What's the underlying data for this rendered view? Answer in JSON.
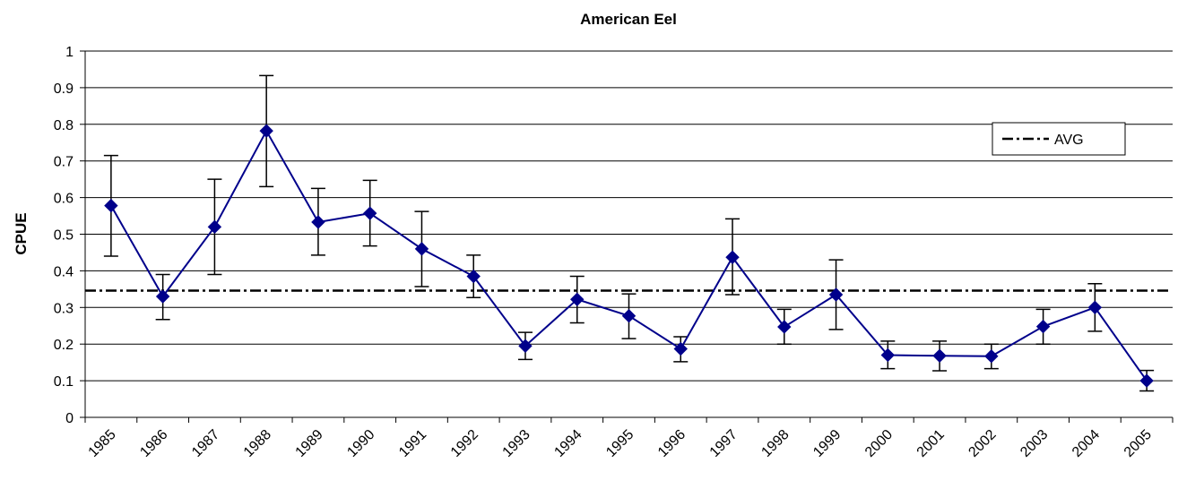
{
  "chart_data": {
    "type": "line",
    "title": "American Eel",
    "xlabel": "",
    "ylabel": "CPUE",
    "ylim": [
      0,
      1
    ],
    "yticks": [
      "0",
      "0.1",
      "0.2",
      "0.3",
      "0.4",
      "0.5",
      "0.6",
      "0.7",
      "0.8",
      "0.9",
      "1"
    ],
    "grid": "horizontal",
    "categories": [
      "1985",
      "1986",
      "1987",
      "1988",
      "1989",
      "1990",
      "1991",
      "1992",
      "1993",
      "1994",
      "1995",
      "1996",
      "1997",
      "1998",
      "1999",
      "2000",
      "2001",
      "2002",
      "2003",
      "2004",
      "2005"
    ],
    "series": [
      {
        "values": [
          0.578,
          0.33,
          0.52,
          0.782,
          0.533,
          0.557,
          0.46,
          0.385,
          0.195,
          0.322,
          0.277,
          0.187,
          0.437,
          0.247,
          0.335,
          0.17,
          0.168,
          0.167,
          0.248,
          0.3,
          0.1
        ],
        "error_low": [
          0.44,
          0.267,
          0.39,
          0.63,
          0.443,
          0.468,
          0.357,
          0.327,
          0.158,
          0.258,
          0.215,
          0.152,
          0.335,
          0.2,
          0.24,
          0.133,
          0.127,
          0.133,
          0.2,
          0.235,
          0.072
        ],
        "error_high": [
          0.715,
          0.39,
          0.65,
          0.933,
          0.625,
          0.647,
          0.562,
          0.443,
          0.232,
          0.385,
          0.337,
          0.22,
          0.542,
          0.295,
          0.43,
          0.208,
          0.208,
          0.2,
          0.295,
          0.365,
          0.128
        ],
        "color": "#00008B",
        "marker": "diamond"
      },
      {
        "name": "AVG",
        "value": 0.346,
        "style": "dash-dot",
        "color": "#000000"
      }
    ],
    "legend": {
      "entries": [
        "AVG"
      ],
      "placement": "top-right"
    }
  }
}
